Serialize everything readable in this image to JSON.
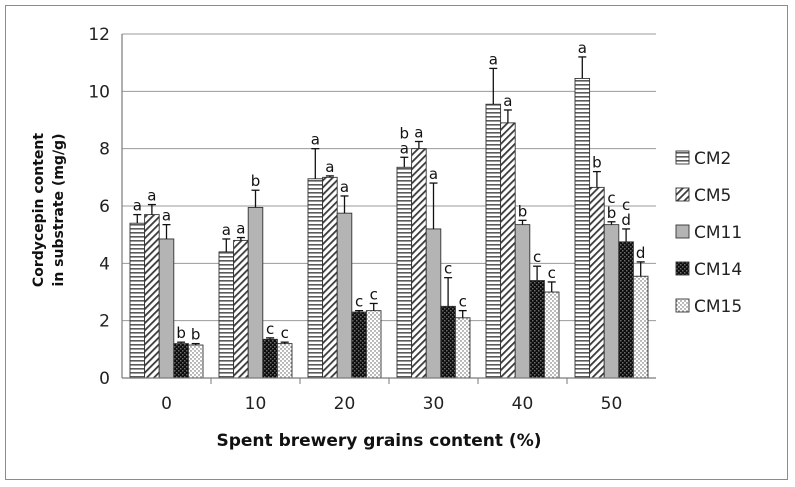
{
  "chart_data": {
    "type": "bar",
    "xlabel": "Spent brewery grains content (%)",
    "ylabel_lines": [
      "Cordycepin content",
      "in substrate (mg/g)"
    ],
    "categories": [
      "0",
      "10",
      "20",
      "30",
      "40",
      "50"
    ],
    "ylim": [
      0,
      12
    ],
    "yticks": [
      "0",
      "2",
      "4",
      "6",
      "8",
      "10",
      "12"
    ],
    "grid": true,
    "legend_position": "right",
    "series": [
      {
        "name": "CM2",
        "pattern": "horizontal-stripes",
        "color": "#7a7a7a",
        "values": [
          5.4,
          4.4,
          6.95,
          7.35,
          9.55,
          10.45
        ],
        "errors": [
          0.3,
          0.45,
          1.05,
          0.35,
          1.25,
          0.75
        ],
        "letters": [
          "a",
          "a",
          "a",
          "b a",
          "a",
          "a"
        ]
      },
      {
        "name": "CM5",
        "pattern": "diagonal-stripes",
        "color": "#7a7a7a",
        "values": [
          5.7,
          4.8,
          7.0,
          8.0,
          8.9,
          6.65
        ],
        "errors": [
          0.35,
          0.1,
          0.05,
          0.25,
          0.45,
          0.55
        ],
        "letters": [
          "a",
          "a",
          "a",
          "a",
          "a",
          "b"
        ]
      },
      {
        "name": "CM11",
        "pattern": "solid",
        "color": "#b4b4b4",
        "values": [
          4.85,
          5.95,
          5.75,
          5.2,
          5.35,
          5.35
        ],
        "errors": [
          0.5,
          0.6,
          0.6,
          1.6,
          0.15,
          0.1
        ],
        "letters": [
          "a",
          "b",
          "a",
          "a",
          "b",
          "c b"
        ]
      },
      {
        "name": "CM14",
        "pattern": "checker-dark",
        "color": "#1a1a1a",
        "values": [
          1.2,
          1.35,
          2.3,
          2.5,
          3.4,
          4.75
        ],
        "errors": [
          0.05,
          0.05,
          0.05,
          1.0,
          0.5,
          0.45
        ],
        "letters": [
          "b",
          "c",
          "c",
          "c",
          "c",
          "c d"
        ]
      },
      {
        "name": "CM15",
        "pattern": "dots",
        "color": "#ffffff",
        "values": [
          1.15,
          1.2,
          2.35,
          2.1,
          3.0,
          3.55
        ],
        "errors": [
          0.05,
          0.05,
          0.25,
          0.25,
          0.35,
          0.5
        ],
        "letters": [
          "b",
          "c",
          "c",
          "c",
          "c",
          "d"
        ]
      }
    ]
  }
}
